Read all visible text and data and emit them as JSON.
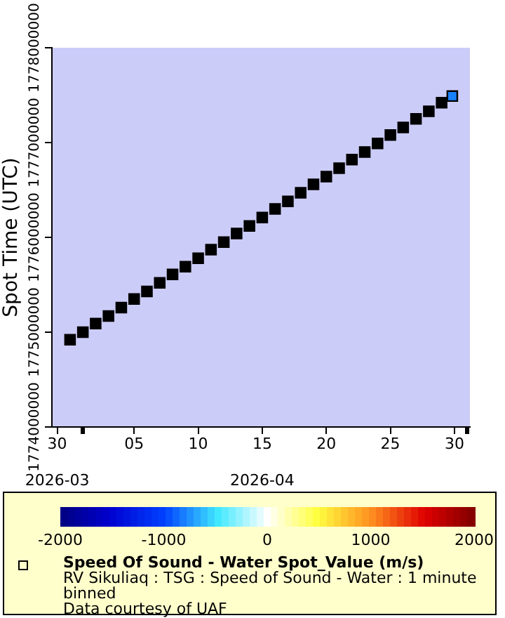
{
  "chart_data": {
    "type": "scatter",
    "ylabel": "Spot Time (UTC)",
    "legend": "bottom",
    "marker": "square",
    "clim": [
      -2000,
      2000
    ],
    "cticks": [
      -2000,
      -1000,
      0,
      1000,
      2000
    ],
    "xlim": [
      "2026-03-29T14:00",
      "2026-05-01T05:00"
    ],
    "xticks": [
      {
        "value": "2026-03-30",
        "label": "30\n2026-03"
      },
      {
        "value": "2026-04-01",
        "label": null
      },
      {
        "value": "2026-04-05",
        "label": "05"
      },
      {
        "value": "2026-04-10",
        "label": "10"
      },
      {
        "value": "2026-04-15",
        "label": "15\n2026-04"
      },
      {
        "value": "2026-04-20",
        "label": "20"
      },
      {
        "value": "2026-04-25",
        "label": "25"
      },
      {
        "value": "2026-04-30",
        "label": "30"
      },
      {
        "value": "2026-05-01",
        "label": null
      }
    ],
    "ylim": [
      1774000000,
      1778000000
    ],
    "yticks": [
      1774000000,
      1775000000,
      1776000000,
      1777000000,
      1778000000
    ],
    "series": [
      {
        "name": "Speed Of Sound - Water Spot_Value (m/s)",
        "color": "#000000",
        "x": [
          "2026-03-31",
          "2026-04-01",
          "2026-04-02",
          "2026-04-03",
          "2026-04-04",
          "2026-04-05",
          "2026-04-06",
          "2026-04-07",
          "2026-04-08",
          "2026-04-09",
          "2026-04-10",
          "2026-04-11",
          "2026-04-12",
          "2026-04-13",
          "2026-04-14",
          "2026-04-15",
          "2026-04-16",
          "2026-04-17",
          "2026-04-18",
          "2026-04-19",
          "2026-04-20",
          "2026-04-21",
          "2026-04-22",
          "2026-04-23",
          "2026-04-24",
          "2026-04-25",
          "2026-04-26",
          "2026-04-27",
          "2026-04-28",
          "2026-04-29",
          "2026-04-29T20:00"
        ],
        "values": [
          1774920000,
          1775000000,
          1775090000,
          1775170000,
          1775260000,
          1775350000,
          1775430000,
          1775520000,
          1775610000,
          1775690000,
          1775780000,
          1775870000,
          1775950000,
          1776040000,
          1776120000,
          1776210000,
          1776300000,
          1776380000,
          1776470000,
          1776560000,
          1776640000,
          1776730000,
          1776820000,
          1776900000,
          1776990000,
          1777080000,
          1777160000,
          1777250000,
          1777330000,
          1777420000,
          1777490000
        ],
        "cvalues": [
          null,
          null,
          null,
          null,
          null,
          null,
          null,
          null,
          null,
          null,
          null,
          null,
          null,
          null,
          null,
          null,
          null,
          null,
          null,
          null,
          null,
          null,
          null,
          null,
          null,
          null,
          null,
          null,
          null,
          null,
          -800
        ]
      }
    ],
    "annotations": [
      "RV Sikuliaq : TSG : Speed of Sound - Water : 1 minute binned",
      "Data courtesy of UAF"
    ]
  }
}
